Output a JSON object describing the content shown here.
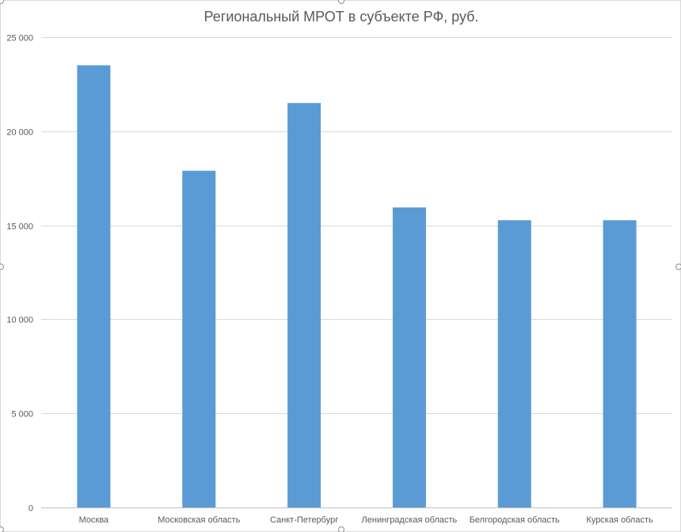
{
  "chart_data": {
    "type": "bar",
    "title": "Региональный МРОТ в субъекте РФ, руб.",
    "xlabel": "",
    "ylabel": "",
    "categories": [
      "Москва",
      "Московская область",
      "Санкт-Петербург",
      "Ленинградская область",
      "Белгородская область",
      "Курская область"
    ],
    "values": [
      23508,
      17900,
      21500,
      15950,
      15270,
      15270
    ],
    "ylim": [
      0,
      25000
    ],
    "yticks": [
      0,
      5000,
      10000,
      15000,
      20000,
      25000
    ],
    "ytick_labels": [
      "0",
      "5 000",
      "10 000",
      "15 000",
      "20 000",
      "25 000"
    ],
    "bar_color": "#5b9bd5",
    "grid": true,
    "legend": "none"
  }
}
